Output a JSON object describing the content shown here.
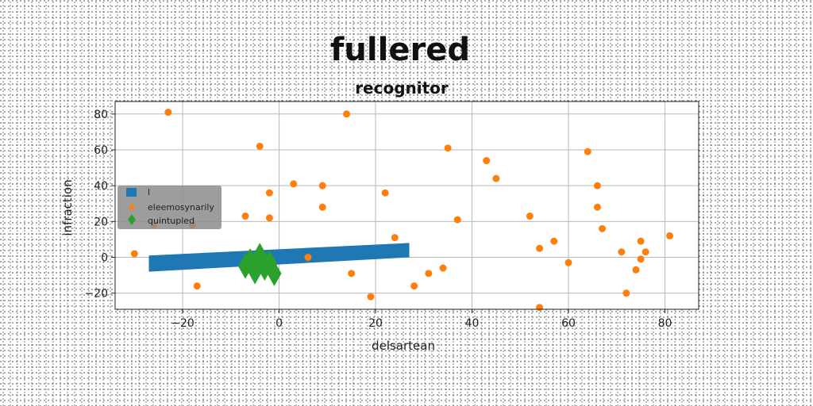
{
  "chart_data": {
    "type": "scatter",
    "title": "fullered",
    "subtitle": "recognitor",
    "xlabel": "delsartean",
    "ylabel": "infraction",
    "xlim": [
      -34,
      87
    ],
    "ylim": [
      -29,
      87
    ],
    "xticks": [
      -20,
      0,
      20,
      40,
      60,
      80
    ],
    "yticks": [
      -20,
      0,
      20,
      40,
      60,
      80
    ],
    "xtick_labels": [
      "−20",
      "0",
      "20",
      "40",
      "60",
      "80"
    ],
    "ytick_labels": [
      "−20",
      "0",
      "20",
      "40",
      "60",
      "80"
    ],
    "grid": true,
    "legend_position": "center-left",
    "series": [
      {
        "name": "l",
        "kind": "band",
        "color": "#1f77b4",
        "x": [
          -27,
          27
        ],
        "y_low": [
          -8,
          0
        ],
        "y_high": [
          1,
          8
        ]
      },
      {
        "name": "eleemosynarily",
        "kind": "points",
        "color": "#ff7f0e",
        "x": [
          -23,
          -30,
          -26,
          -18,
          -17,
          -7,
          -4,
          -2,
          -2,
          3,
          6,
          9,
          9,
          14,
          15,
          19,
          22,
          24,
          28,
          31,
          34,
          35,
          37,
          43,
          45,
          52,
          54,
          54,
          57,
          60,
          64,
          66,
          66,
          67,
          71,
          72,
          74,
          75,
          75,
          76,
          81
        ],
        "y": [
          81,
          2,
          18,
          18,
          -16,
          23,
          62,
          36,
          22,
          41,
          0,
          28,
          40,
          80,
          -9,
          -22,
          36,
          11,
          -16,
          -9,
          -6,
          61,
          21,
          54,
          44,
          23,
          5,
          -28,
          9,
          -3,
          59,
          40,
          28,
          16,
          3,
          -20,
          -7,
          9,
          -1,
          3,
          12
        ]
      },
      {
        "name": "quintupled",
        "kind": "diamonds",
        "color": "#2ca02c",
        "x": [
          -7,
          -6,
          -5,
          -4,
          -3,
          -2,
          -1
        ],
        "y": [
          -5,
          -2,
          -8,
          1,
          -6,
          -3,
          -9
        ]
      }
    ]
  }
}
